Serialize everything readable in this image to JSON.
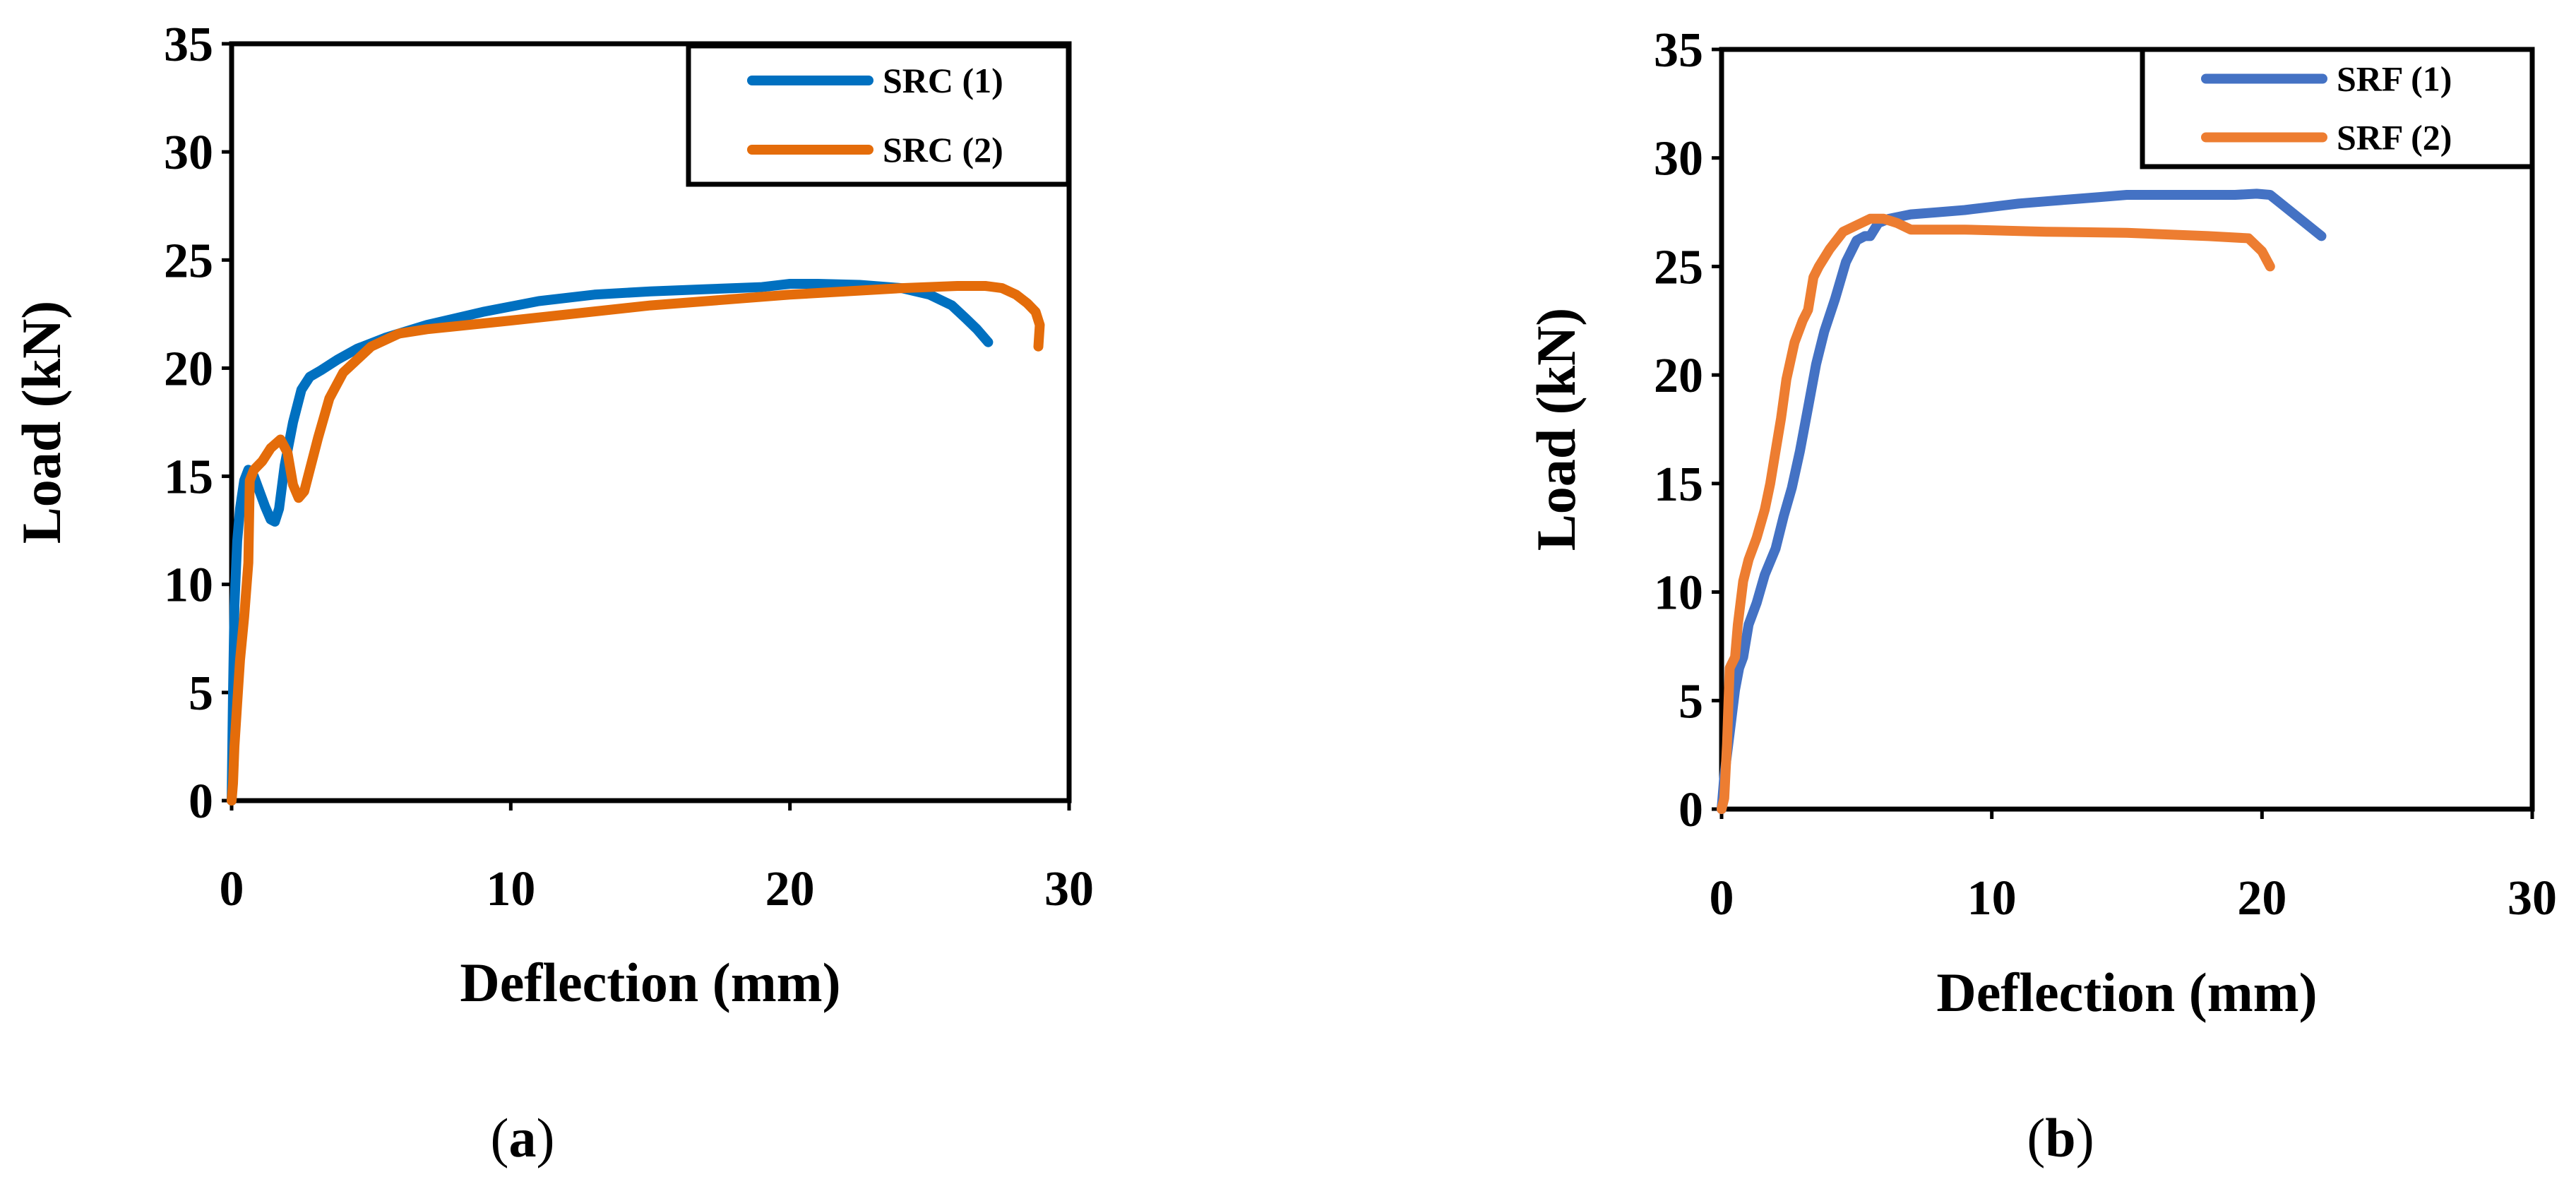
{
  "figure": {
    "captions": {
      "a": "a",
      "b": "b"
    }
  },
  "chart_data": [
    {
      "type": "line",
      "panel": "a",
      "title": "",
      "xlabel": "Deflection (mm)",
      "ylabel": "Load (kN)",
      "xlim": [
        0,
        30
      ],
      "ylim": [
        0,
        35
      ],
      "xticks": [
        0,
        10,
        20,
        30
      ],
      "yticks": [
        0,
        5,
        10,
        15,
        20,
        25,
        30,
        35
      ],
      "grid": false,
      "legend_position": "top-right",
      "series": [
        {
          "name": "SRC (1)",
          "color": "#0070c0",
          "x": [
            0.0,
            0.05,
            0.1,
            0.2,
            0.3,
            0.45,
            0.6,
            0.8,
            1.0,
            1.2,
            1.4,
            1.55,
            1.7,
            1.9,
            2.2,
            2.5,
            2.8,
            3.2,
            3.8,
            4.5,
            5.5,
            7.0,
            9.0,
            11.0,
            13.0,
            15.0,
            17.0,
            19.0,
            20.0,
            21.0,
            22.5,
            24.0,
            25.0,
            25.8,
            26.3,
            26.7,
            27.1
          ],
          "y": [
            0.0,
            5.0,
            9.0,
            12.0,
            13.5,
            14.8,
            15.3,
            15.0,
            14.3,
            13.6,
            13.0,
            12.9,
            13.5,
            15.5,
            17.5,
            19.0,
            19.6,
            19.9,
            20.4,
            20.9,
            21.4,
            22.0,
            22.6,
            23.1,
            23.4,
            23.55,
            23.65,
            23.75,
            23.9,
            23.9,
            23.85,
            23.7,
            23.4,
            22.9,
            22.3,
            21.8,
            21.2
          ]
        },
        {
          "name": "SRC (2)",
          "color": "#e46c0a",
          "x": [
            0.0,
            0.05,
            0.1,
            0.2,
            0.3,
            0.45,
            0.6,
            0.65,
            0.8,
            1.1,
            1.4,
            1.75,
            2.0,
            2.2,
            2.4,
            2.6,
            2.8,
            3.1,
            3.5,
            4.0,
            5.0,
            6.0,
            7.0,
            10.0,
            15.0,
            20.0,
            24.0,
            26.0,
            27.0,
            27.6,
            28.1,
            28.5,
            28.8,
            28.95,
            28.9
          ],
          "y": [
            0.0,
            0.8,
            2.5,
            4.5,
            6.5,
            8.5,
            11.0,
            14.8,
            15.3,
            15.7,
            16.3,
            16.7,
            16.1,
            14.6,
            14.0,
            14.3,
            15.3,
            16.8,
            18.6,
            19.8,
            21.0,
            21.6,
            21.8,
            22.2,
            22.9,
            23.4,
            23.7,
            23.8,
            23.8,
            23.7,
            23.4,
            23.0,
            22.6,
            22.0,
            21.0
          ]
        }
      ]
    },
    {
      "type": "line",
      "panel": "b",
      "title": "",
      "xlabel": "Deflection (mm)",
      "ylabel": "Load (kN)",
      "xlim": [
        0,
        30
      ],
      "ylim": [
        0,
        35
      ],
      "xticks": [
        0,
        10,
        20,
        30
      ],
      "yticks": [
        0,
        5,
        10,
        15,
        20,
        25,
        30,
        35
      ],
      "grid": false,
      "legend_position": "top-right",
      "series": [
        {
          "name": "SRF (1)",
          "color": "#4472c4",
          "x": [
            0.0,
            0.1,
            0.3,
            0.5,
            0.65,
            0.8,
            1.0,
            1.3,
            1.6,
            2.0,
            2.3,
            2.6,
            2.9,
            3.2,
            3.5,
            3.8,
            4.2,
            4.6,
            5.0,
            5.3,
            5.5,
            5.8,
            6.2,
            7.0,
            8.0,
            9.0,
            10.0,
            11.0,
            12.0,
            13.0,
            14.0,
            15.0,
            17.0,
            19.0,
            19.8,
            20.3,
            20.8,
            21.4,
            22.2
          ],
          "y": [
            0.0,
            1.5,
            3.5,
            5.5,
            6.5,
            7.0,
            8.5,
            9.5,
            10.8,
            12.0,
            13.5,
            14.8,
            16.5,
            18.5,
            20.5,
            22.0,
            23.5,
            25.2,
            26.2,
            26.4,
            26.4,
            27.0,
            27.2,
            27.4,
            27.5,
            27.6,
            27.75,
            27.9,
            28.0,
            28.1,
            28.2,
            28.3,
            28.3,
            28.3,
            28.35,
            28.3,
            27.8,
            27.2,
            26.4
          ]
        },
        {
          "name": "SRF (2)",
          "color": "#ed7d31",
          "x": [
            0.0,
            0.1,
            0.2,
            0.3,
            0.5,
            0.6,
            0.8,
            1.0,
            1.3,
            1.6,
            1.8,
            2.0,
            2.2,
            2.4,
            2.7,
            3.0,
            3.2,
            3.4,
            3.6,
            4.0,
            4.5,
            5.0,
            5.5,
            6.0,
            6.5,
            7.0,
            9.0,
            12.0,
            15.0,
            18.0,
            19.5,
            20.0,
            20.3
          ],
          "y": [
            0.0,
            0.5,
            3.0,
            6.5,
            7.0,
            8.5,
            10.5,
            11.5,
            12.5,
            13.8,
            15.0,
            16.5,
            18.0,
            19.8,
            21.5,
            22.5,
            23.0,
            24.5,
            25.0,
            25.8,
            26.6,
            26.9,
            27.2,
            27.2,
            27.0,
            26.7,
            26.7,
            26.6,
            26.55,
            26.4,
            26.3,
            25.7,
            25.0
          ]
        }
      ]
    }
  ]
}
